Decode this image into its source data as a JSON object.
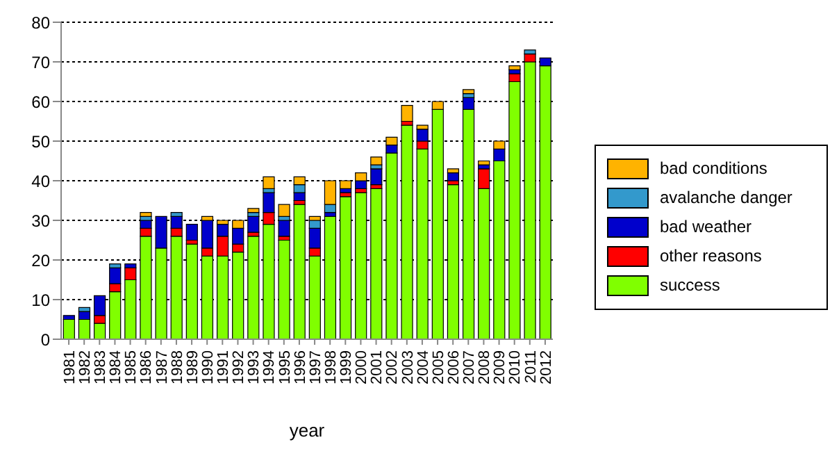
{
  "chart_data": {
    "type": "bar",
    "stacked": true,
    "xlabel": "year",
    "categories": [
      "1981",
      "1982",
      "1983",
      "1984",
      "1985",
      "1986",
      "1987",
      "1988",
      "1989",
      "1990",
      "1991",
      "1992",
      "1993",
      "1994",
      "1995",
      "1996",
      "1997",
      "1998",
      "1999",
      "2000",
      "2001",
      "2002",
      "2003",
      "2004",
      "2005",
      "2006",
      "2007",
      "2008",
      "2009",
      "2010",
      "2011",
      "2012"
    ],
    "series": [
      {
        "name": "success",
        "color": "#80ff00",
        "values": [
          5,
          5,
          4,
          12,
          15,
          26,
          23,
          26,
          24,
          21,
          21,
          22,
          26,
          29,
          25,
          34,
          21,
          31,
          36,
          37,
          38,
          47,
          54,
          48,
          58,
          39,
          58,
          38,
          45,
          65,
          70,
          69
        ]
      },
      {
        "name": "other reasons",
        "color": "#ff0000",
        "values": [
          0,
          0,
          2,
          2,
          3,
          2,
          0,
          2,
          1,
          2,
          5,
          2,
          1,
          3,
          1,
          1,
          2,
          0,
          1,
          1,
          1,
          0,
          1,
          2,
          0,
          1,
          0,
          5,
          0,
          2,
          2,
          0
        ]
      },
      {
        "name": "bad weather",
        "color": "#0000cc",
        "values": [
          1,
          2,
          5,
          4,
          1,
          2,
          8,
          3,
          4,
          7,
          3,
          4,
          4,
          5,
          4,
          2,
          5,
          1,
          1,
          2,
          4,
          2,
          0,
          3,
          0,
          2,
          3,
          1,
          3,
          1,
          0,
          2
        ]
      },
      {
        "name": "avalanche danger",
        "color": "#3399cc",
        "values": [
          0,
          1,
          0,
          1,
          0,
          1,
          0,
          1,
          0,
          0,
          0,
          0,
          1,
          1,
          1,
          2,
          2,
          2,
          0,
          0,
          1,
          0,
          0,
          0,
          0,
          0,
          1,
          0,
          0,
          0,
          1,
          0
        ]
      },
      {
        "name": "bad conditions",
        "color": "#ffb300",
        "values": [
          0,
          0,
          0,
          0,
          0,
          1,
          0,
          0,
          0,
          1,
          1,
          2,
          1,
          3,
          3,
          2,
          1,
          6,
          2,
          2,
          2,
          2,
          4,
          1,
          2,
          1,
          1,
          1,
          2,
          1,
          0,
          0
        ]
      }
    ],
    "ylim": [
      0,
      80
    ],
    "yticks": [
      0,
      10,
      20,
      30,
      40,
      50,
      60,
      70,
      80
    ],
    "grid": "y",
    "legend": "right"
  }
}
